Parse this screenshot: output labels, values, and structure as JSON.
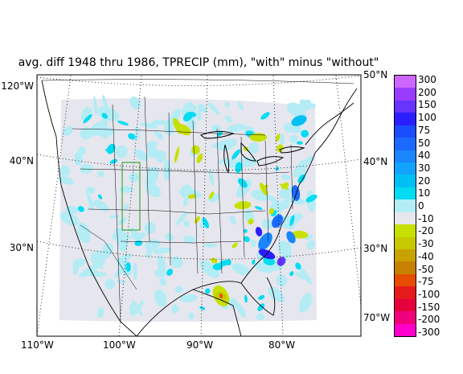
{
  "title": "avg. diff 1948 thru 1986, TPRECIP (mm), \"with\" minus \"without\"",
  "lon_labels": [
    "110°W",
    "100°W",
    "90°W",
    "80°W"
  ],
  "lat_labels_left": [
    "120°W",
    "40°N",
    "30°N"
  ],
  "lat_labels_right": [
    "50°N",
    "40°N",
    "30°N",
    "70°W"
  ],
  "colorbar": {
    "levels": [
      "300",
      "200",
      "150",
      "100",
      "75",
      "50",
      "40",
      "30",
      "20",
      "10",
      "0",
      "-10",
      "-20",
      "-30",
      "-40",
      "-50",
      "-75",
      "-100",
      "-150",
      "-200",
      "-300"
    ],
    "colors": [
      "#cc66ff",
      "#9a3cff",
      "#6633ff",
      "#2b1fff",
      "#1a4dff",
      "#1a6aff",
      "#1a86ff",
      "#12a3ff",
      "#00bff5",
      "#00dcf2",
      "#b3ecf5",
      "#e6e6ee",
      "#c8e000",
      "#c8c800",
      "#c8a300",
      "#c88000",
      "#e64d00",
      "#e61a1a",
      "#e6003c",
      "#f0007a",
      "#ff00cc"
    ]
  }
}
